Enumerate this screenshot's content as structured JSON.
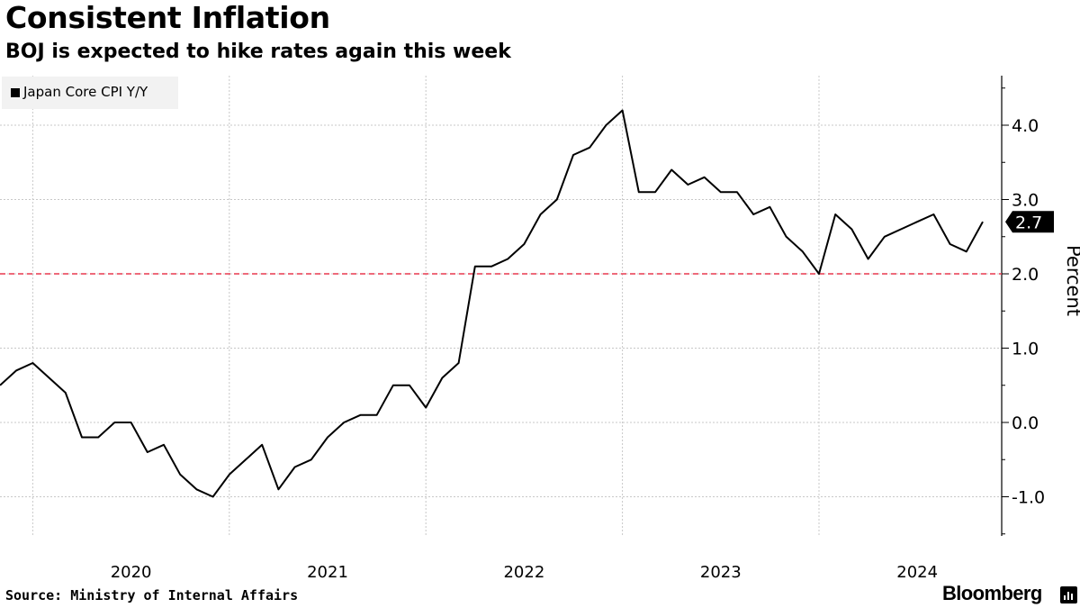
{
  "chart_data": {
    "type": "line",
    "title": "Consistent Inflation",
    "subtitle": "BOJ is expected to hike rates again this week",
    "series": [
      {
        "name": "Japan Core CPI Y/Y",
        "color": "#000000",
        "values": [
          0.5,
          0.7,
          0.8,
          0.6,
          0.4,
          -0.2,
          -0.2,
          0.0,
          0.0,
          -0.4,
          -0.3,
          -0.7,
          -0.9,
          -1.0,
          -0.7,
          -0.5,
          -0.3,
          -0.9,
          -0.6,
          -0.5,
          -0.2,
          0.0,
          0.1,
          0.1,
          0.5,
          0.5,
          0.2,
          0.6,
          0.8,
          2.1,
          2.1,
          2.2,
          2.4,
          2.8,
          3.0,
          3.6,
          3.7,
          4.0,
          4.2,
          3.1,
          3.1,
          3.4,
          3.2,
          3.3,
          3.1,
          3.1,
          2.8,
          2.9,
          2.5,
          2.3,
          2.0,
          2.8,
          2.6,
          2.2,
          2.5,
          2.6,
          2.7,
          2.8,
          2.4,
          2.3,
          2.7
        ]
      }
    ],
    "start": "2019-11",
    "last_value_label": "2.7",
    "reference_line": {
      "value": 2.0,
      "color": "#e8384f",
      "style": "dashed"
    },
    "ylim": [
      -1.5,
      4.7
    ],
    "yticks": [
      -1.0,
      0.0,
      1.0,
      2.0,
      3.0,
      4.0
    ],
    "ytick_labels": [
      "-1.0",
      "0.0",
      "1.0",
      "2.0",
      "3.0",
      "4.0"
    ],
    "xtick_labels": [
      "2020",
      "2021",
      "2022",
      "2023",
      "2024"
    ],
    "xlabel": "",
    "ylabel": "Percent",
    "grid": true,
    "legend": "top-left"
  },
  "footer": {
    "source": "Source: Ministry of Internal Affairs",
    "brand": "Bloomberg"
  },
  "icons": {
    "brand": "bloomberg-logo-icon"
  }
}
